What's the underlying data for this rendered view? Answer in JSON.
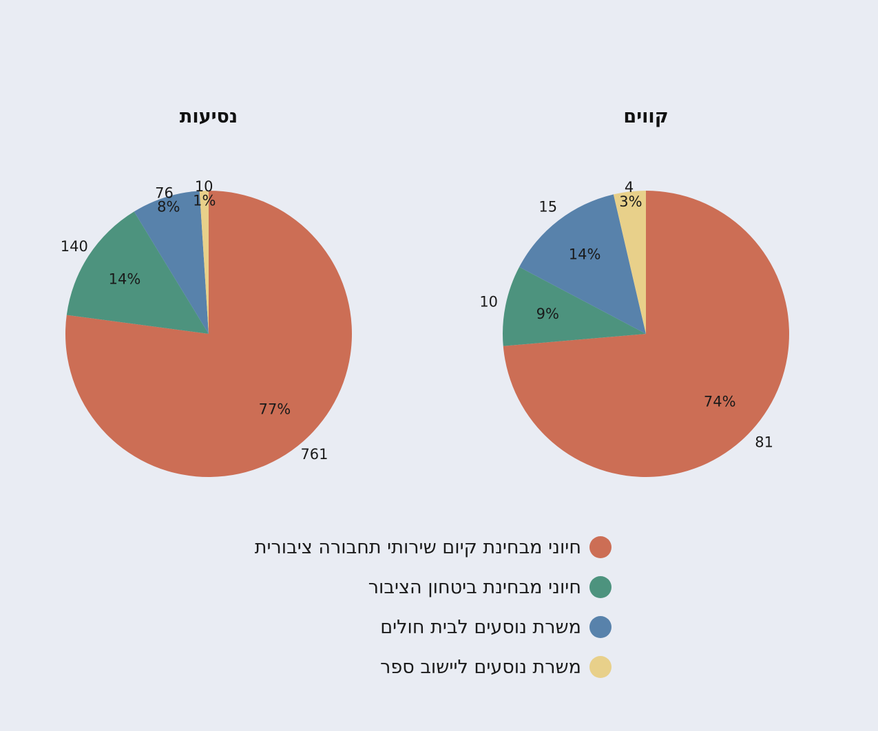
{
  "chart_data": [
    {
      "type": "pie",
      "title": "קווים",
      "categories": [
        "חיוני מבחינת קיום שירותי תחבורה ציבורית",
        "חיוני מבחינת ביטחון הציבור",
        "משרת נוסעים לבית חולים",
        "משרת נוסעים ליישוב ספר"
      ],
      "values": [
        81,
        10,
        15,
        4
      ],
      "percent_labels": [
        "74%",
        "9%",
        "14%",
        "3%"
      ],
      "value_labels": [
        "81",
        "10",
        "15",
        "4"
      ],
      "start": "12 o'clock",
      "direction": "clockwise"
    },
    {
      "type": "pie",
      "title": "נסיעות",
      "categories": [
        "חיוני מבחינת קיום שירותי תחבורה ציבורית",
        "חיוני מבחינת ביטחון הציבור",
        "משרת נוסעים לבית חולים",
        "משרת נוסעים ליישוב ספר"
      ],
      "values": [
        761,
        140,
        76,
        10
      ],
      "percent_labels": [
        "77%",
        "14%",
        "8%",
        "1%"
      ],
      "value_labels": [
        "761",
        "140",
        "76",
        "10"
      ],
      "start": "12 o'clock",
      "direction": "clockwise"
    }
  ],
  "legend": {
    "placement": "bottom",
    "items": [
      {
        "label": "חיוני מבחינת קיום שירותי תחבורה ציבורית",
        "color": "#cc6e55"
      },
      {
        "label": "חיוני מבחינת ביטחון הציבור",
        "color": "#4d937e"
      },
      {
        "label": "משרת נוסעים לבית חולים",
        "color": "#5882ab"
      },
      {
        "label": "משרת נוסעים ליישוב ספר",
        "color": "#e8d08a"
      }
    ]
  },
  "colors": [
    "#cc6e55",
    "#4d937e",
    "#5882ab",
    "#e8d08a"
  ]
}
